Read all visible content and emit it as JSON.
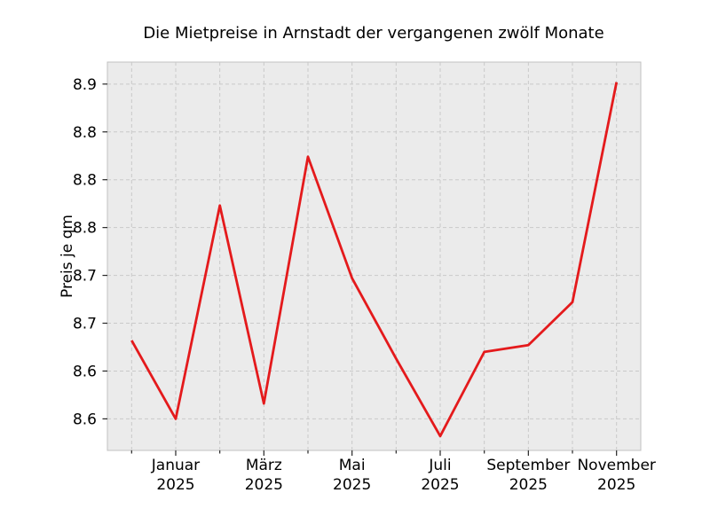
{
  "chart_data": {
    "type": "line",
    "title": "Die Mietpreise in Arnstadt der vergangenen zwölf Monate",
    "ylabel": "Preis je qm",
    "xlabel": "",
    "x_index": [
      0,
      1,
      2,
      3,
      4,
      5,
      6,
      7,
      8,
      9,
      10,
      11
    ],
    "values": [
      8.632,
      8.55,
      8.773,
      8.566,
      8.824,
      8.697,
      8.613,
      8.532,
      8.62,
      8.627,
      8.672,
      8.902
    ],
    "x_major_ticks": [
      {
        "index": 1,
        "label_line1": "Januar",
        "label_line2": "2025"
      },
      {
        "index": 3,
        "label_line1": "März",
        "label_line2": "2025"
      },
      {
        "index": 5,
        "label_line1": "Mai",
        "label_line2": "2025"
      },
      {
        "index": 7,
        "label_line1": "Juli",
        "label_line2": "2025"
      },
      {
        "index": 9,
        "label_line1": "September",
        "label_line2": "2025"
      },
      {
        "index": 11,
        "label_line1": "November",
        "label_line2": "2025"
      }
    ],
    "y_ticks": [
      {
        "value": 8.9,
        "label": "8.9"
      },
      {
        "value": 8.85,
        "label": "8.8"
      },
      {
        "value": 8.8,
        "label": "8.8"
      },
      {
        "value": 8.75,
        "label": "8.8"
      },
      {
        "value": 8.7,
        "label": "8.7"
      },
      {
        "value": 8.65,
        "label": "8.7"
      },
      {
        "value": 8.6,
        "label": "8.6"
      },
      {
        "value": 8.55,
        "label": "8.6"
      }
    ],
    "xlim": [
      -0.55,
      11.55
    ],
    "ylim": [
      8.517,
      8.923
    ],
    "grid": true,
    "legend": false,
    "colors": {
      "line": "#e41a1c",
      "plot_background": "#ebebeb",
      "figure_background": "#ffffff",
      "grid": "#c9c9c9",
      "spine": "#c0c0c0",
      "tick": "#262626",
      "text": "#000000"
    }
  }
}
